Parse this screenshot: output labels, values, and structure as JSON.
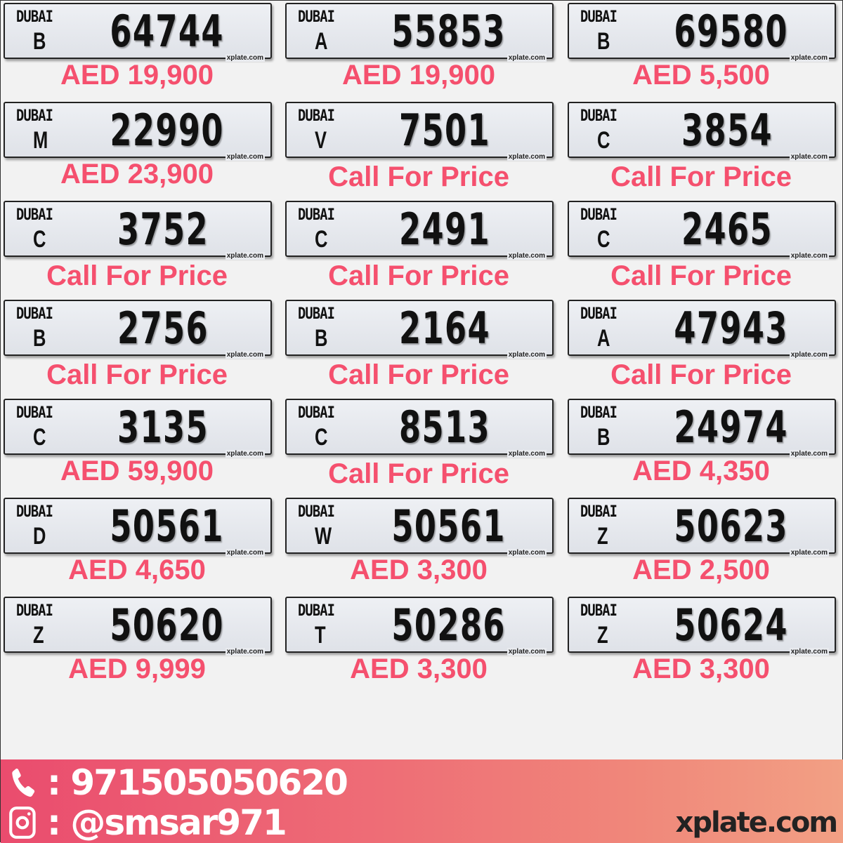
{
  "emirate_label": "DUBAI",
  "plate_watermark": "xplate.com",
  "price_color": "#f5506e",
  "listings": [
    {
      "code": "B",
      "number": "64744",
      "price": "AED 19,900"
    },
    {
      "code": "A",
      "number": "55853",
      "price": "AED 19,900"
    },
    {
      "code": "B",
      "number": "69580",
      "price": "AED 5,500"
    },
    {
      "code": "M",
      "number": "22990",
      "price": "AED 23,900"
    },
    {
      "code": "V",
      "number": "7501",
      "price": "Call For Price"
    },
    {
      "code": "C",
      "number": "3854",
      "price": "Call For Price"
    },
    {
      "code": "C",
      "number": "3752",
      "price": "Call For Price"
    },
    {
      "code": "C",
      "number": "2491",
      "price": "Call For Price"
    },
    {
      "code": "C",
      "number": "2465",
      "price": "Call For Price"
    },
    {
      "code": "B",
      "number": "2756",
      "price": "Call For Price"
    },
    {
      "code": "B",
      "number": "2164",
      "price": "Call For Price"
    },
    {
      "code": "A",
      "number": "47943",
      "price": "Call For Price"
    },
    {
      "code": "C",
      "number": "3135",
      "price": "AED 59,900"
    },
    {
      "code": "C",
      "number": "8513",
      "price": "Call For Price"
    },
    {
      "code": "B",
      "number": "24974",
      "price": "AED 4,350"
    },
    {
      "code": "D",
      "number": "50561",
      "price": "AED 4,650"
    },
    {
      "code": "W",
      "number": "50561",
      "price": "AED 3,300"
    },
    {
      "code": "Z",
      "number": "50623",
      "price": "AED 2,500"
    },
    {
      "code": "Z",
      "number": "50620",
      "price": "AED 9,999"
    },
    {
      "code": "T",
      "number": "50286",
      "price": "AED 3,300"
    },
    {
      "code": "Z",
      "number": "50624",
      "price": "AED 3,300"
    }
  ],
  "footer": {
    "phone_icon": "phone-icon",
    "phone": ": 971505050620",
    "instagram_icon": "instagram-icon",
    "instagram": ": @smsar971",
    "brand": "xplate.com"
  }
}
